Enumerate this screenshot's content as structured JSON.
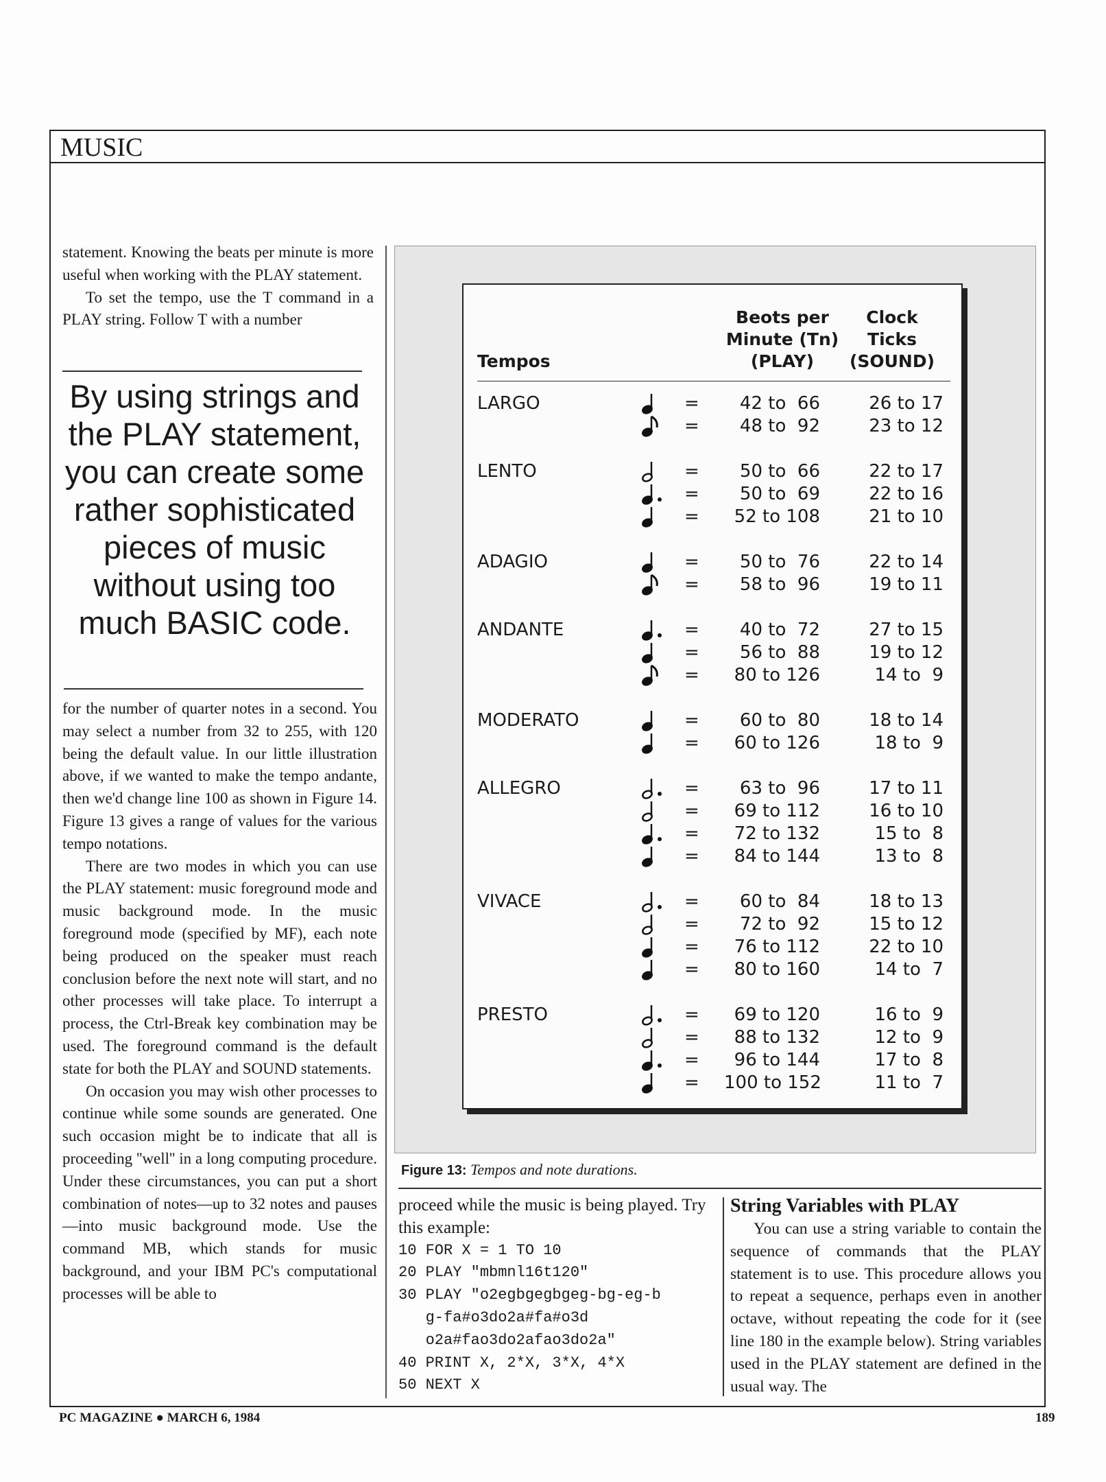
{
  "section": "MUSIC",
  "left_top": [
    "statement. Knowing the beats per minute is more useful when working with the PLAY statement.",
    "To set the tempo, use the T command in a PLAY string. Follow T with a number"
  ],
  "pull_quote": "By using strings and the PLAY statement, you can create some rather sophisticated pieces of music without using too much BASIC code.",
  "left_bottom": [
    "for the number of quarter notes in a second. You may select a number from 32 to 255, with 120 being the default value. In our little illustration above, if we wanted to make the tempo andante, then we'd change line 100 as shown in Figure 14. Figure 13 gives a range of values for the various tempo notations.",
    "There are two modes in which you can use the PLAY statement: music foreground mode and music background mode. In the music foreground mode (specified by MF), each note being produced on the speaker must reach conclusion before the next note will start, and no other processes will take place. To interrupt a process, the Ctrl-Break key combination may be used. The foreground command is the default state for both the PLAY and SOUND statements.",
    "On occasion you may wish other processes to continue while some sounds are generated. One such occasion might be to indicate that all is proceeding ''well'' in a long computing procedure. Under these circumstances, you can put a short combination of notes—up to 32 notes and pauses—into music background mode. Use the command MB, which stands for music background, and your IBM PC's computational processes will be able to"
  ],
  "figure": {
    "headers": {
      "tempos": "Tempos",
      "bpm": [
        "Beots per",
        "Minute (Tn)",
        "(PLAY)"
      ],
      "ticks": [
        "Clock",
        "Ticks",
        "(SOUND)"
      ]
    },
    "equals": "=",
    "groups": [
      {
        "name": "LARGO",
        "rows": [
          [
            "quarter",
            "42 to  66",
            "26 to 17"
          ],
          [
            "eighth",
            "48 to  92",
            "23 to 12"
          ]
        ]
      },
      {
        "name": "LENTO",
        "rows": [
          [
            "half",
            "50 to  66",
            "22 to 17"
          ],
          [
            "dotted-quarter",
            "50 to  69",
            "22 to 16"
          ],
          [
            "quarter",
            "52 to 108",
            "21 to 10"
          ]
        ]
      },
      {
        "name": "ADAGIO",
        "rows": [
          [
            "quarter",
            "50 to  76",
            "22 to 14"
          ],
          [
            "eighth",
            "58 to  96",
            "19 to 11"
          ]
        ]
      },
      {
        "name": "ANDANTE",
        "rows": [
          [
            "dotted-quarter",
            "40 to  72",
            "27 to 15"
          ],
          [
            "quarter",
            "56 to  88",
            "19 to 12"
          ],
          [
            "eighth",
            "80 to 126",
            "14 to  9"
          ]
        ]
      },
      {
        "name": "MODERATO",
        "rows": [
          [
            "quarter",
            "60 to  80",
            "18 to 14"
          ],
          [
            "quarter",
            "60 to 126",
            "18 to  9"
          ]
        ]
      },
      {
        "name": "ALLEGRO",
        "rows": [
          [
            "dotted-half",
            "63 to  96",
            "17 to 11"
          ],
          [
            "half",
            "69 to 112",
            "16 to 10"
          ],
          [
            "dotted-quarter",
            "72 to 132",
            "15 to  8"
          ],
          [
            "quarter",
            "84 to 144",
            "13 to  8"
          ]
        ]
      },
      {
        "name": "VIVACE",
        "rows": [
          [
            "dotted-half",
            "60 to  84",
            "18 to 13"
          ],
          [
            "half",
            "72 to  92",
            "15 to 12"
          ],
          [
            "quarter",
            "76 to 112",
            "22 to 10"
          ],
          [
            "quarter",
            "80 to 160",
            "14 to  7"
          ]
        ]
      },
      {
        "name": "PRESTO",
        "rows": [
          [
            "dotted-half",
            "69 to 120",
            "16 to  9"
          ],
          [
            "half",
            "88 to 132",
            "12 to  9"
          ],
          [
            "dotted-quarter",
            "96 to 144",
            "17 to  8"
          ],
          [
            "quarter",
            "100 to 152",
            "11 to  7"
          ]
        ]
      }
    ],
    "caption_label": "Figure 13:",
    "caption_text": "Tempos and note durations."
  },
  "middle": {
    "intro": "proceed while the music is being played. Try this example:",
    "code": [
      "10 FOR X = 1 TO 10",
      "20 PLAY \"mbmnl16t120\"",
      "30 PLAY \"o2egbgegbgeg-bg-eg-b",
      "   g-fa#o3do2a#fa#o3d",
      "   o2a#fao3do2afao3do2a\"",
      "40 PRINT X, 2*X, 3*X, 4*X",
      "50 NEXT X"
    ]
  },
  "right": {
    "heading": "String Variables with PLAY",
    "text": "You can use a string variable to contain the sequence of commands that the PLAY statement is to use. This procedure allows you to repeat a sequence, perhaps even in another octave, without repeating the code for it (see line 180 in the example below). String variables used in the PLAY statement are defined in the usual way. The"
  },
  "footer": {
    "publication": "PC MAGAZINE ● MARCH 6, 1984",
    "page": "189"
  }
}
